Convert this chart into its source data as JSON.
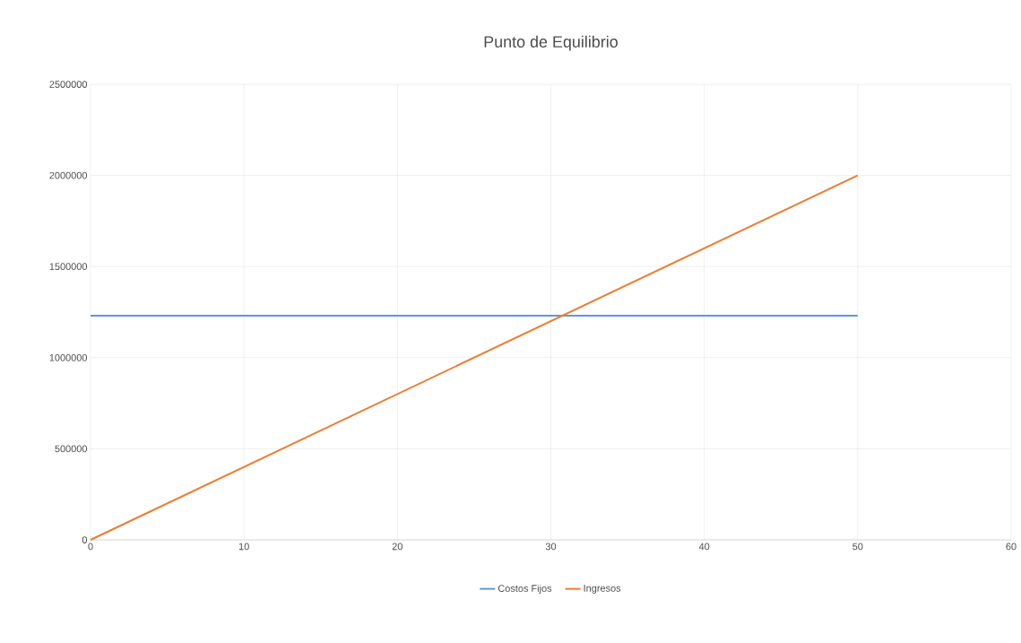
{
  "chart_data": {
    "type": "line",
    "title": "Punto de Equilibrio",
    "x": [
      0,
      50
    ],
    "series": [
      {
        "name": "Costos Fijos",
        "color": "#5b9bd5",
        "values": [
          1230000,
          1230000
        ]
      },
      {
        "name": "Ingresos",
        "color": "#ed7d31",
        "values": [
          0,
          2000000
        ]
      }
    ],
    "xlim": [
      0,
      60
    ],
    "xticks": [
      0,
      10,
      20,
      30,
      40,
      50,
      60
    ],
    "ylim": [
      0,
      2500000
    ],
    "yticks": [
      0,
      500000,
      1000000,
      1500000,
      2000000,
      2500000
    ],
    "grid": true,
    "legend": "bottom",
    "marker": "none",
    "line_style": "solid"
  }
}
